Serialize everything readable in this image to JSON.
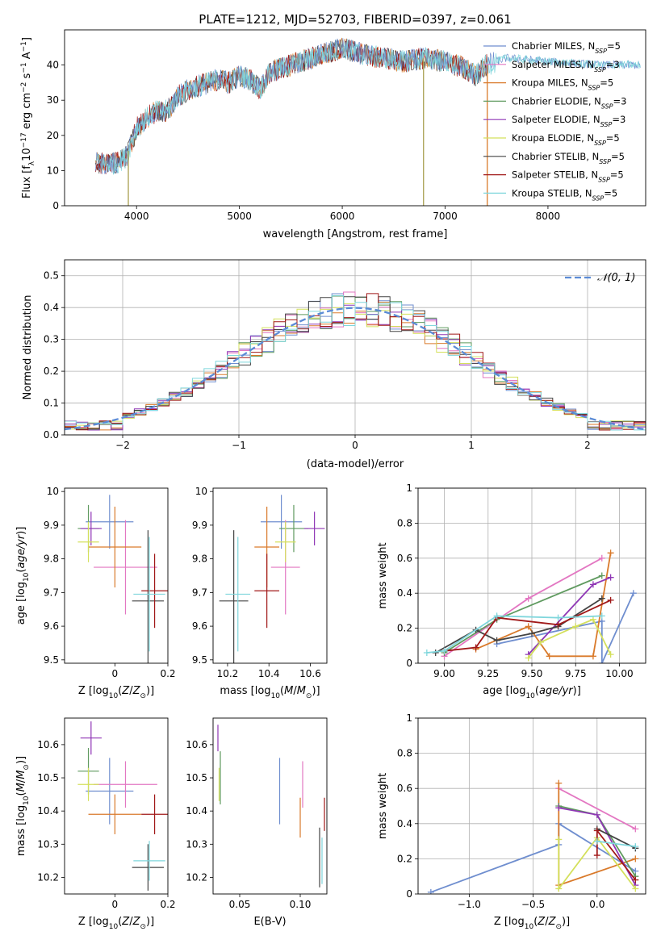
{
  "title": "PLATE=1212, MJD=52703, FIBERID=0397, z=0.061",
  "model_colors": {
    "Chabrier MILES": "#6f8ecf",
    "Salpeter MILES": "#e377c2",
    "Kroupa MILES": "#d97a2b",
    "Chabrier ELODIE": "#5f9a5f",
    "Salpeter ELODIE": "#8f36b5",
    "Kroupa ELODIE": "#d4e05c",
    "Chabrier STELIB": "#444444",
    "Salpeter STELIB": "#a01818",
    "Kroupa STELIB": "#7fd6dc"
  },
  "chart_data": [
    {
      "id": "spectrum",
      "type": "line",
      "xlabel": "wavelength [Angstrom, rest frame]",
      "ylabel": "Flux [f_λ 10^-17 erg cm^-2 s^-1 A^-1]",
      "xlim": [
        3300,
        8950
      ],
      "ylim": [
        0,
        50
      ],
      "xticks": [
        4000,
        5000,
        6000,
        7000,
        8000
      ],
      "yticks": [
        0,
        10,
        20,
        30,
        40
      ],
      "grid": false,
      "legend_position": "right",
      "legend": [
        {
          "label": "Chabrier MILES, N_SSP=5",
          "color": "#6f8ecf"
        },
        {
          "label": "Salpeter MILES, N_SSP=3",
          "color": "#e377c2"
        },
        {
          "label": "Kroupa MILES, N_SSP=5",
          "color": "#d97a2b"
        },
        {
          "label": "Chabrier ELODIE, N_SSP=3",
          "color": "#5f9a5f"
        },
        {
          "label": "Salpeter ELODIE, N_SSP=3",
          "color": "#8f36b5"
        },
        {
          "label": "Kroupa ELODIE, N_SSP=5",
          "color": "#d4e05c"
        },
        {
          "label": "Chabrier STELIB, N_SSP=5",
          "color": "#444444"
        },
        {
          "label": "Salpeter STELIB, N_SSP=5",
          "color": "#a01818"
        },
        {
          "label": "Kroupa STELIB, N_SSP=5",
          "color": "#7fd6dc"
        }
      ],
      "continuum": [
        [
          3600,
          12
        ],
        [
          3800,
          12
        ],
        [
          3900,
          14
        ],
        [
          4000,
          22
        ],
        [
          4100,
          25
        ],
        [
          4200,
          27
        ],
        [
          4300,
          27
        ],
        [
          4400,
          31
        ],
        [
          4500,
          33
        ],
        [
          4600,
          34
        ],
        [
          4700,
          35
        ],
        [
          4800,
          36
        ],
        [
          4900,
          35
        ],
        [
          5000,
          37
        ],
        [
          5100,
          36
        ],
        [
          5200,
          33
        ],
        [
          5300,
          38
        ],
        [
          5400,
          39
        ],
        [
          5500,
          40
        ],
        [
          5700,
          42
        ],
        [
          5900,
          44
        ],
        [
          6000,
          45
        ],
        [
          6200,
          43
        ],
        [
          6400,
          42
        ],
        [
          6600,
          41
        ],
        [
          6800,
          42
        ],
        [
          7000,
          41
        ],
        [
          7200,
          39
        ],
        [
          7300,
          37
        ],
        [
          7400,
          40
        ],
        [
          7500,
          41
        ],
        [
          7600,
          42
        ],
        [
          8000,
          41
        ],
        [
          8500,
          40
        ],
        [
          8900,
          40
        ]
      ],
      "spikes": [
        {
          "x": 3920,
          "y": 0
        },
        {
          "x": 6790,
          "y": 0
        },
        {
          "x": 7410,
          "y": 0
        }
      ]
    },
    {
      "id": "residual-histogram",
      "type": "histogram",
      "xlabel": "(data-model)/error",
      "ylabel": "Normed distribution",
      "xlim": [
        -2.5,
        2.5
      ],
      "ylim": [
        0,
        0.55
      ],
      "xticks": [
        -2,
        -1,
        0,
        1,
        2
      ],
      "xtick_labels": [
        "−2",
        "−1",
        "0",
        "1",
        "2"
      ],
      "yticks": [
        0.0,
        0.1,
        0.2,
        0.3,
        0.4,
        0.5
      ],
      "ytick_labels": [
        "0.0",
        "0.1",
        "0.2",
        "0.3",
        "0.4",
        "0.5"
      ],
      "grid": true,
      "legend_position": "top-right",
      "reference_curve": {
        "label": "𝒩(0, 1)",
        "mean": 0,
        "sigma": 1,
        "color": "#5b8bd6"
      },
      "bin_width": 0.1,
      "bin_start": -2.5
    },
    {
      "id": "age-vs-metallicity",
      "type": "errorbar",
      "xlabel": "Z [log10(Z/Z⊙)]",
      "ylabel": "age [log10(age/yr)]",
      "xlim": [
        -0.19,
        0.2
      ],
      "ylim": [
        9.49,
        10.01
      ],
      "xticks": [
        0.0,
        0.2
      ],
      "yticks": [
        9.5,
        9.6,
        9.7,
        9.8,
        9.9,
        10.0
      ],
      "points": [
        {
          "model": "Chabrier MILES",
          "x": -0.02,
          "xerr": 0.09,
          "y": 9.91,
          "yerr": 0.08
        },
        {
          "model": "Salpeter MILES",
          "x": 0.04,
          "xerr": 0.12,
          "y": 9.775,
          "yerr": 0.14
        },
        {
          "model": "Kroupa MILES",
          "x": 0.0,
          "xerr": 0.1,
          "y": 9.835,
          "yerr": 0.12
        },
        {
          "model": "Chabrier ELODIE",
          "x": -0.1,
          "xerr": 0.04,
          "y": 9.89,
          "yerr": 0.07
        },
        {
          "model": "Salpeter ELODIE",
          "x": -0.09,
          "xerr": 0.04,
          "y": 9.89,
          "yerr": 0.05
        },
        {
          "model": "Kroupa ELODIE",
          "x": -0.1,
          "xerr": 0.04,
          "y": 9.85,
          "yerr": 0.06
        },
        {
          "model": "Chabrier STELIB",
          "x": 0.125,
          "xerr": 0.06,
          "y": 9.675,
          "yerr": 0.21
        },
        {
          "model": "Salpeter STELIB",
          "x": 0.15,
          "xerr": 0.05,
          "y": 9.705,
          "yerr": 0.11
        },
        {
          "model": "Kroupa STELIB",
          "x": 0.13,
          "xerr": 0.06,
          "y": 9.695,
          "yerr": 0.17
        }
      ]
    },
    {
      "id": "age-vs-mass",
      "type": "errorbar",
      "xlabel": "mass [log10(M/M⊙)]",
      "ylabel": "",
      "xlim": [
        10.13,
        10.68
      ],
      "ylim": [
        9.49,
        10.01
      ],
      "xticks": [
        10.2,
        10.4,
        10.6
      ],
      "yticks": [
        9.5,
        9.6,
        9.7,
        9.8,
        9.9,
        10.0
      ],
      "points": [
        {
          "model": "Chabrier MILES",
          "x": 10.46,
          "xerr": 0.1,
          "y": 9.91,
          "yerr": 0.08
        },
        {
          "model": "Salpeter MILES",
          "x": 10.48,
          "xerr": 0.07,
          "y": 9.775,
          "yerr": 0.14
        },
        {
          "model": "Kroupa MILES",
          "x": 10.39,
          "xerr": 0.06,
          "y": 9.835,
          "yerr": 0.12
        },
        {
          "model": "Chabrier ELODIE",
          "x": 10.52,
          "xerr": 0.07,
          "y": 9.89,
          "yerr": 0.07
        },
        {
          "model": "Salpeter ELODIE",
          "x": 10.62,
          "xerr": 0.05,
          "y": 9.89,
          "yerr": 0.05
        },
        {
          "model": "Kroupa ELODIE",
          "x": 10.48,
          "xerr": 0.05,
          "y": 9.85,
          "yerr": 0.06
        },
        {
          "model": "Chabrier STELIB",
          "x": 10.23,
          "xerr": 0.07,
          "y": 9.675,
          "yerr": 0.21
        },
        {
          "model": "Salpeter STELIB",
          "x": 10.39,
          "xerr": 0.06,
          "y": 9.705,
          "yerr": 0.11
        },
        {
          "model": "Kroupa STELIB",
          "x": 10.25,
          "xerr": 0.06,
          "y": 9.695,
          "yerr": 0.17
        }
      ]
    },
    {
      "id": "weight-vs-age",
      "type": "line",
      "xlabel": "age [log10(age/yr)]",
      "ylabel": "mass weight",
      "xlim": [
        8.85,
        10.15
      ],
      "ylim": [
        0,
        1.0
      ],
      "xticks": [
        9.0,
        9.25,
        9.5,
        9.75,
        10.0
      ],
      "xtick_labels": [
        "9.00",
        "9.25",
        "9.50",
        "9.75",
        "10.00"
      ],
      "yticks": [
        0.0,
        0.2,
        0.4,
        0.6,
        0.8,
        1.0
      ],
      "grid": true,
      "series": [
        {
          "model": "Chabrier MILES",
          "points": [
            [
              9.3,
              0.11
            ],
            [
              9.9,
              0.24
            ],
            [
              9.9,
              0.0
            ],
            [
              10.08,
              0.4
            ]
          ]
        },
        {
          "model": "Salpeter MILES",
          "points": [
            [
              9.0,
              0.04
            ],
            [
              9.48,
              0.37
            ],
            [
              9.9,
              0.6
            ]
          ]
        },
        {
          "model": "Kroupa MILES",
          "points": [
            [
              9.18,
              0.08
            ],
            [
              9.48,
              0.21
            ],
            [
              9.6,
              0.04
            ],
            [
              9.85,
              0.04
            ],
            [
              9.95,
              0.63
            ]
          ]
        },
        {
          "model": "Chabrier ELODIE",
          "points": [
            [
              9.0,
              0.06
            ],
            [
              9.3,
              0.25
            ],
            [
              9.9,
              0.5
            ]
          ]
        },
        {
          "model": "Salpeter ELODIE",
          "points": [
            [
              9.48,
              0.05
            ],
            [
              9.85,
              0.45
            ],
            [
              9.95,
              0.49
            ]
          ]
        },
        {
          "model": "Kroupa ELODIE",
          "points": [
            [
              9.48,
              0.03
            ],
            [
              9.55,
              0.12
            ],
            [
              9.75,
              0.21
            ],
            [
              9.85,
              0.25
            ],
            [
              9.95,
              0.05
            ]
          ]
        },
        {
          "model": "Chabrier STELIB",
          "points": [
            [
              8.95,
              0.06
            ],
            [
              9.18,
              0.19
            ],
            [
              9.3,
              0.13
            ],
            [
              9.5,
              0.17
            ],
            [
              9.65,
              0.21
            ],
            [
              9.9,
              0.37
            ]
          ]
        },
        {
          "model": "Salpeter STELIB",
          "points": [
            [
              9.0,
              0.07
            ],
            [
              9.18,
              0.09
            ],
            [
              9.3,
              0.26
            ],
            [
              9.65,
              0.22
            ],
            [
              9.95,
              0.36
            ]
          ]
        },
        {
          "model": "Kroupa STELIB",
          "points": [
            [
              8.9,
              0.06
            ],
            [
              9.0,
              0.07
            ],
            [
              9.3,
              0.27
            ],
            [
              9.65,
              0.26
            ],
            [
              9.9,
              0.27
            ]
          ]
        }
      ]
    },
    {
      "id": "mass-vs-metallicity",
      "type": "errorbar",
      "xlabel": "Z [log10(Z/Z⊙)]",
      "ylabel": "mass [log10(M/M⊙)]",
      "xlim": [
        -0.19,
        0.2
      ],
      "ylim": [
        10.15,
        10.68
      ],
      "xticks": [
        0.0,
        0.2
      ],
      "yticks": [
        10.2,
        10.3,
        10.4,
        10.5,
        10.6
      ],
      "points": [
        {
          "model": "Chabrier MILES",
          "x": -0.02,
          "xerr": 0.09,
          "y": 10.46,
          "yerr": 0.1
        },
        {
          "model": "Salpeter MILES",
          "x": 0.04,
          "xerr": 0.12,
          "y": 10.48,
          "yerr": 0.07
        },
        {
          "model": "Kroupa MILES",
          "x": 0.0,
          "xerr": 0.1,
          "y": 10.39,
          "yerr": 0.06
        },
        {
          "model": "Chabrier ELODIE",
          "x": -0.1,
          "xerr": 0.04,
          "y": 10.52,
          "yerr": 0.07
        },
        {
          "model": "Salpeter ELODIE",
          "x": -0.09,
          "xerr": 0.04,
          "y": 10.62,
          "yerr": 0.05
        },
        {
          "model": "Kroupa ELODIE",
          "x": -0.1,
          "xerr": 0.04,
          "y": 10.48,
          "yerr": 0.05
        },
        {
          "model": "Chabrier STELIB",
          "x": 0.125,
          "xerr": 0.06,
          "y": 10.23,
          "yerr": 0.07
        },
        {
          "model": "Salpeter STELIB",
          "x": 0.15,
          "xerr": 0.05,
          "y": 10.39,
          "yerr": 0.06
        },
        {
          "model": "Kroupa STELIB",
          "x": 0.13,
          "xerr": 0.06,
          "y": 10.25,
          "yerr": 0.06
        }
      ]
    },
    {
      "id": "mass-vs-ebv",
      "type": "errorbar",
      "xlabel": "E(B-V)",
      "ylabel": "",
      "xlim": [
        0.028,
        0.122
      ],
      "ylim": [
        10.15,
        10.68
      ],
      "xticks": [
        0.05,
        0.1
      ],
      "xtick_labels": [
        "0.05",
        "0.10"
      ],
      "yticks": [
        10.2,
        10.3,
        10.4,
        10.5,
        10.6
      ],
      "points": [
        {
          "model": "Chabrier MILES",
          "x": 0.083,
          "y": 10.46,
          "yerr": 0.1
        },
        {
          "model": "Salpeter MILES",
          "x": 0.102,
          "y": 10.48,
          "yerr": 0.07
        },
        {
          "model": "Kroupa MILES",
          "x": 0.1,
          "y": 10.38,
          "yerr": 0.06
        },
        {
          "model": "Chabrier ELODIE",
          "x": 0.034,
          "y": 10.5,
          "yerr": 0.08
        },
        {
          "model": "Salpeter ELODIE",
          "x": 0.032,
          "y": 10.62,
          "yerr": 0.04
        },
        {
          "model": "Kroupa ELODIE",
          "x": 0.033,
          "y": 10.48,
          "yerr": 0.05
        },
        {
          "model": "Chabrier STELIB",
          "x": 0.116,
          "y": 10.26,
          "yerr": 0.09
        },
        {
          "model": "Salpeter STELIB",
          "x": 0.12,
          "y": 10.39,
          "yerr": 0.05
        },
        {
          "model": "Kroupa STELIB",
          "x": 0.118,
          "y": 10.25,
          "yerr": 0.07
        }
      ]
    },
    {
      "id": "weight-vs-metallicity",
      "type": "line",
      "xlabel": "Z [log10(Z/Z⊙)]",
      "ylabel": "mass weight",
      "xlim": [
        -1.4,
        0.38
      ],
      "ylim": [
        0,
        1.0
      ],
      "xticks": [
        -1.0,
        -0.5,
        0.0
      ],
      "xtick_labels": [
        "−1.0",
        "−0.5",
        "0.0"
      ],
      "yticks": [
        0.0,
        0.2,
        0.4,
        0.6,
        0.8,
        1.0
      ],
      "grid": true,
      "series": [
        {
          "model": "Chabrier MILES",
          "points": [
            [
              -1.3,
              0.01
            ],
            [
              -0.3,
              0.28
            ],
            [
              -0.3,
              0.4
            ],
            [
              0.3,
              0.13
            ]
          ]
        },
        {
          "model": "Salpeter MILES",
          "points": [
            [
              -0.3,
              0.6
            ],
            [
              0.3,
              0.37
            ]
          ]
        },
        {
          "model": "Kroupa MILES",
          "points": [
            [
              -0.3,
              0.63
            ],
            [
              -0.3,
              0.05
            ],
            [
              0.3,
              0.2
            ]
          ]
        },
        {
          "model": "Chabrier ELODIE",
          "points": [
            [
              -0.3,
              0.5
            ],
            [
              0.0,
              0.45
            ],
            [
              0.3,
              0.1
            ]
          ]
        },
        {
          "model": "Salpeter ELODIE",
          "points": [
            [
              -0.3,
              0.49
            ],
            [
              0.0,
              0.45
            ],
            [
              0.3,
              0.05
            ]
          ]
        },
        {
          "model": "Kroupa ELODIE",
          "points": [
            [
              -0.3,
              0.31
            ],
            [
              -0.3,
              0.03
            ],
            [
              0.0,
              0.32
            ],
            [
              0.3,
              0.03
            ]
          ]
        },
        {
          "model": "Chabrier STELIB",
          "points": [
            [
              0.0,
              0.37
            ],
            [
              0.3,
              0.26
            ]
          ]
        },
        {
          "model": "Salpeter STELIB",
          "points": [
            [
              0.0,
              0.22
            ],
            [
              0.0,
              0.36
            ],
            [
              0.3,
              0.08
            ]
          ]
        },
        {
          "model": "Kroupa STELIB",
          "points": [
            [
              0.0,
              0.3
            ],
            [
              0.3,
              0.27
            ]
          ]
        }
      ]
    }
  ]
}
